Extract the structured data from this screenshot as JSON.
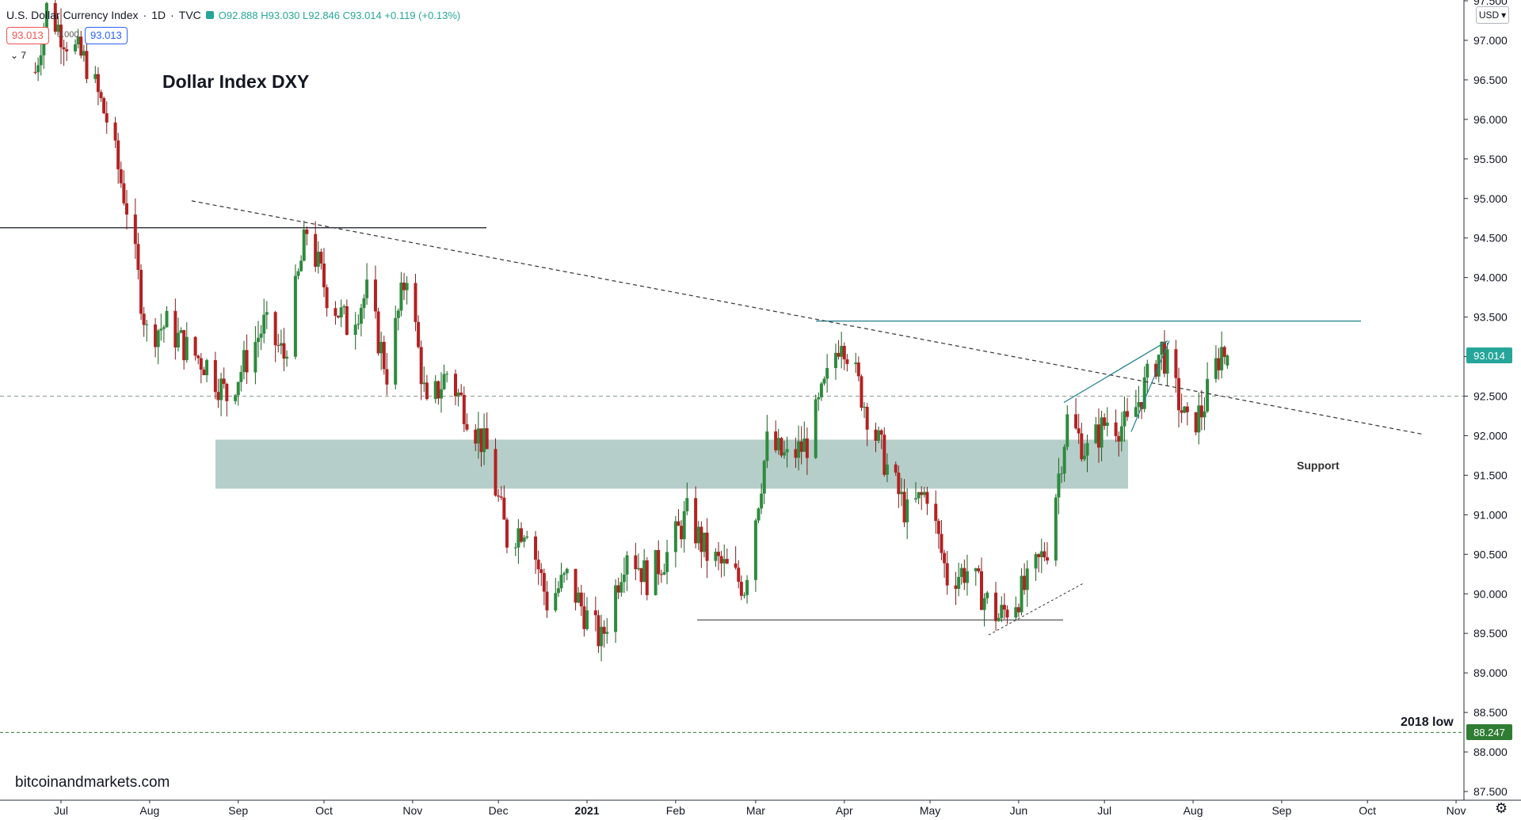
{
  "header": {
    "symbol": "U.S. Dollar Currency Index",
    "interval": "1D",
    "exchange": "TVC",
    "ohlc": "O92.888 H93.030 L92.846 C93.014 +0.119 (+0.13%)"
  },
  "trade_badges": {
    "sell": "93.013",
    "spread": "0.000",
    "buy": "93.013"
  },
  "indicator_toggle": "7",
  "annotations": {
    "title": "Dollar Index DXY",
    "support_label": "Support",
    "low_label": "2018 low",
    "watermark": "bitcoinandmarkets.com"
  },
  "price_scale": {
    "currency": "USD"
  },
  "price_tags": {
    "last": "93.014",
    "low_2018": "88.247"
  },
  "colors": {
    "up": "#26a69a",
    "down": "#ef5350",
    "up_body": "#2e8b3e",
    "down_body": "#b22222",
    "support_zone": "#a9c6bf",
    "resistance_line": "#1e7f8c",
    "low_line": "#2e7d32"
  },
  "chart_data": {
    "type": "candlestick",
    "title": "Dollar Index DXY",
    "ylim": [
      87.5,
      97.5
    ],
    "y_ticks": [
      "87.500",
      "88.000",
      "88.500",
      "89.000",
      "89.500",
      "90.000",
      "90.500",
      "91.000",
      "91.500",
      "92.000",
      "92.500",
      "93.000",
      "93.500",
      "94.000",
      "94.500",
      "95.000",
      "95.500",
      "96.000",
      "96.500",
      "97.000",
      "97.500"
    ],
    "x_ticks": [
      "Jul",
      "Aug",
      "Sep",
      "Oct",
      "Nov",
      "Dec",
      "2021",
      "Feb",
      "Mar",
      "Apr",
      "May",
      "Jun",
      "Jul",
      "Aug",
      "Sep",
      "Oct",
      "Nov"
    ],
    "last_price": 93.014,
    "path_points": [
      {
        "x": "2020-06-22",
        "y": 96.6
      },
      {
        "x": "2020-06-26",
        "y": 97.4
      },
      {
        "x": "2020-07-03",
        "y": 97.0
      },
      {
        "x": "2020-07-10",
        "y": 96.7
      },
      {
        "x": "2020-07-17",
        "y": 96.0
      },
      {
        "x": "2020-07-24",
        "y": 94.9
      },
      {
        "x": "2020-07-31",
        "y": 93.3
      },
      {
        "x": "2020-08-07",
        "y": 93.4
      },
      {
        "x": "2020-08-14",
        "y": 93.1
      },
      {
        "x": "2020-08-21",
        "y": 92.9
      },
      {
        "x": "2020-08-28",
        "y": 92.5
      },
      {
        "x": "2020-09-03",
        "y": 92.9
      },
      {
        "x": "2020-09-10",
        "y": 93.4
      },
      {
        "x": "2020-09-17",
        "y": 93.0
      },
      {
        "x": "2020-09-25",
        "y": 94.6
      },
      {
        "x": "2020-10-02",
        "y": 93.8
      },
      {
        "x": "2020-10-09",
        "y": 93.4
      },
      {
        "x": "2020-10-16",
        "y": 93.8
      },
      {
        "x": "2020-10-23",
        "y": 92.8
      },
      {
        "x": "2020-10-30",
        "y": 94.1
      },
      {
        "x": "2020-11-06",
        "y": 92.3
      },
      {
        "x": "2020-11-13",
        "y": 92.8
      },
      {
        "x": "2020-11-20",
        "y": 92.3
      },
      {
        "x": "2020-11-27",
        "y": 91.8
      },
      {
        "x": "2020-12-04",
        "y": 90.7
      },
      {
        "x": "2020-12-11",
        "y": 90.9
      },
      {
        "x": "2020-12-18",
        "y": 89.9
      },
      {
        "x": "2020-12-25",
        "y": 90.2
      },
      {
        "x": "2021-01-01",
        "y": 89.7
      },
      {
        "x": "2021-01-06",
        "y": 89.4
      },
      {
        "x": "2021-01-15",
        "y": 90.6
      },
      {
        "x": "2021-01-22",
        "y": 90.2
      },
      {
        "x": "2021-01-29",
        "y": 90.5
      },
      {
        "x": "2021-02-05",
        "y": 91.0
      },
      {
        "x": "2021-02-12",
        "y": 90.5
      },
      {
        "x": "2021-02-19",
        "y": 90.3
      },
      {
        "x": "2021-02-25",
        "y": 90.1
      },
      {
        "x": "2021-03-05",
        "y": 91.9
      },
      {
        "x": "2021-03-12",
        "y": 91.7
      },
      {
        "x": "2021-03-19",
        "y": 91.9
      },
      {
        "x": "2021-03-26",
        "y": 92.7
      },
      {
        "x": "2021-03-31",
        "y": 93.3
      },
      {
        "x": "2021-04-09",
        "y": 92.3
      },
      {
        "x": "2021-04-16",
        "y": 91.6
      },
      {
        "x": "2021-04-23",
        "y": 91.0
      },
      {
        "x": "2021-04-30",
        "y": 91.3
      },
      {
        "x": "2021-05-07",
        "y": 90.2
      },
      {
        "x": "2021-05-14",
        "y": 90.3
      },
      {
        "x": "2021-05-21",
        "y": 89.9
      },
      {
        "x": "2021-05-25",
        "y": 89.7
      },
      {
        "x": "2021-06-04",
        "y": 90.1
      },
      {
        "x": "2021-06-11",
        "y": 90.6
      },
      {
        "x": "2021-06-18",
        "y": 92.2
      },
      {
        "x": "2021-06-25",
        "y": 91.8
      },
      {
        "x": "2021-07-02",
        "y": 92.2
      },
      {
        "x": "2021-07-09",
        "y": 92.1
      },
      {
        "x": "2021-07-16",
        "y": 92.7
      },
      {
        "x": "2021-07-21",
        "y": 93.1
      },
      {
        "x": "2021-07-30",
        "y": 92.1
      },
      {
        "x": "2021-08-04",
        "y": 92.3
      },
      {
        "x": "2021-08-11",
        "y": 93.1
      },
      {
        "x": "2021-08-13",
        "y": 93.014
      }
    ]
  }
}
